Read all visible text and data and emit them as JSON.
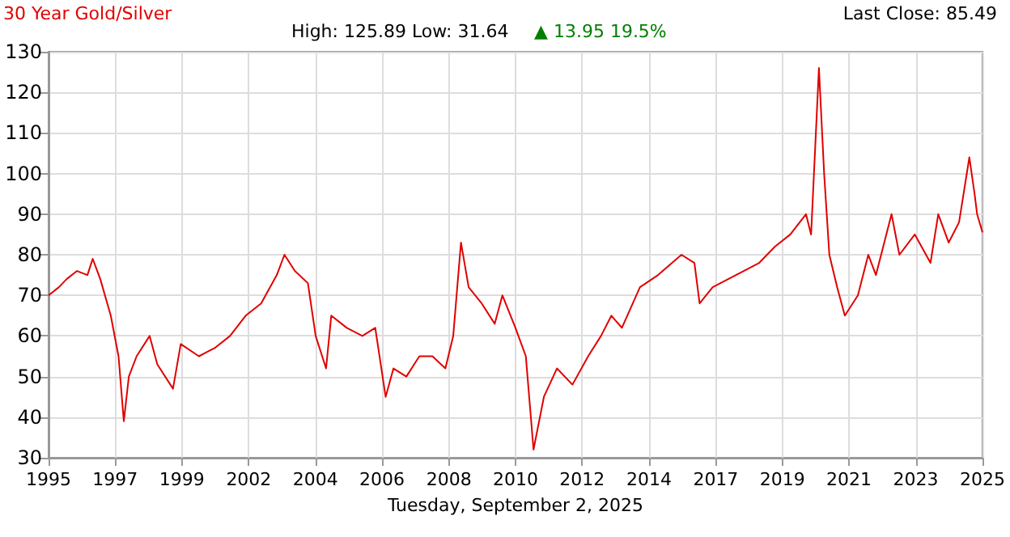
{
  "chart_data": {
    "type": "line",
    "title": "30 Year Gold/Silver",
    "subtitle": "High: 125.89 Low: 31.64",
    "annotations": [
      "▲ 13.95 19.5%",
      "Last Close: 85.49"
    ],
    "xlabel": "Tuesday, September 2, 2025",
    "x": [
      "1995-09-02",
      "1996-01",
      "1996-04",
      "1996-08",
      "1996-12",
      "1997-02",
      "1997-05",
      "1997-09",
      "1997-12",
      "1998-02",
      "1998-04",
      "1998-07",
      "1998-12",
      "1999-03",
      "1999-09",
      "1999-12",
      "2000-07",
      "2001-01",
      "2001-07",
      "2002-01",
      "2002-07",
      "2003-01",
      "2003-04",
      "2003-08",
      "2004-01",
      "2004-04",
      "2004-08",
      "2004-10",
      "2005-04",
      "2005-10",
      "2006-03",
      "2006-07",
      "2006-10",
      "2007-03",
      "2007-08",
      "2008-01",
      "2008-06",
      "2008-09",
      "2008-12",
      "2009-03",
      "2009-08",
      "2010-01",
      "2010-04",
      "2010-09",
      "2011-01",
      "2011-03",
      "2011-04",
      "2011-08",
      "2012-01",
      "2012-07",
      "2013-01",
      "2013-06",
      "2013-10",
      "2014-02",
      "2014-09",
      "2015-04",
      "2016-01",
      "2016-06",
      "2016-08",
      "2017-01",
      "2017-10",
      "2018-07",
      "2019-01",
      "2019-07",
      "2020-01",
      "2020-03",
      "2020-06",
      "2020-08",
      "2020-10",
      "2021-01",
      "2021-04",
      "2021-09",
      "2022-01",
      "2022-04",
      "2022-10",
      "2023-01",
      "2023-07",
      "2024-01",
      "2024-04",
      "2024-08",
      "2024-12",
      "2025-04",
      "2025-06",
      "2025-07",
      "2025-09-02"
    ],
    "series": [
      {
        "color": "#e00000",
        "values": [
          70,
          72,
          74,
          76,
          75,
          79,
          74,
          65,
          55,
          39,
          50,
          55,
          60,
          53,
          47,
          58,
          55,
          57,
          60,
          65,
          68,
          75,
          80,
          76,
          73,
          60,
          52,
          65,
          62,
          60,
          62,
          45,
          52,
          50,
          55,
          55,
          52,
          60,
          83,
          72,
          68,
          63,
          70,
          62,
          55,
          40,
          32,
          45,
          52,
          48,
          55,
          60,
          65,
          62,
          72,
          75,
          80,
          78,
          68,
          72,
          75,
          78,
          82,
          85,
          90,
          85,
          126,
          100,
          80,
          72,
          65,
          70,
          80,
          75,
          90,
          80,
          85,
          78,
          90,
          83,
          88,
          104,
          95,
          90,
          85.5
        ]
      }
    ],
    "xlim": [
      "1995-09-02",
      "2025-09-02"
    ],
    "xticks": [
      {
        "value": "1995-09-02",
        "label": "1995"
      },
      {
        "value": "1997-10-22",
        "label": "1997"
      },
      {
        "value": "1999-12-15",
        "label": "1999"
      },
      {
        "value": "2002-02-06",
        "label": "2002"
      },
      {
        "value": "2004-03-29",
        "label": "2004"
      },
      {
        "value": "2006-05-19",
        "label": "2006"
      },
      {
        "value": "2008-07-12",
        "label": "2008"
      },
      {
        "value": "2010-09-01",
        "label": "2010"
      },
      {
        "value": "2012-10-23",
        "label": "2012"
      },
      {
        "value": "2014-12-16",
        "label": "2014"
      },
      {
        "value": "2017-02-06",
        "label": "2017"
      },
      {
        "value": "2019-03-30",
        "label": "2019"
      },
      {
        "value": "2021-05-20",
        "label": "2021"
      },
      {
        "value": "2023-07-12",
        "label": "2023"
      },
      {
        "value": "2025-09-02",
        "label": "2025"
      }
    ],
    "ylim": [
      30,
      130
    ],
    "yticks": [
      30,
      40,
      50,
      60,
      70,
      80,
      90,
      100,
      110,
      120,
      130
    ],
    "grid": true,
    "marker": "none",
    "line_style": "solid"
  }
}
